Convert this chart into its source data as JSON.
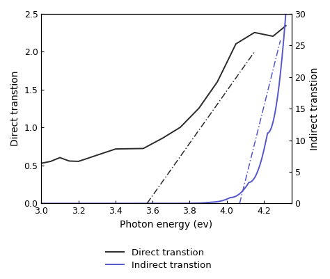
{
  "xlabel": "Photon energy (ev)",
  "ylabel_left": "Direct transtion",
  "ylabel_right": "Indirect transtion",
  "xlim": [
    3.0,
    4.35
  ],
  "ylim_left": [
    0.0,
    2.5
  ],
  "ylim_right": [
    0.0,
    30.0
  ],
  "xticks": [
    3.0,
    3.2,
    3.4,
    3.6,
    3.8,
    4.0,
    4.2
  ],
  "yticks_left": [
    0.0,
    0.5,
    1.0,
    1.5,
    2.0,
    2.5
  ],
  "yticks_right": [
    0,
    5,
    10,
    15,
    20,
    25,
    30
  ],
  "legend_entries": [
    "Direct transtion",
    "Indirect transtion"
  ],
  "direct_color": "#2a2a2a",
  "indirect_color": "#5555cc",
  "figsize": [
    4.74,
    4.01
  ],
  "dpi": 100,
  "scale_factor": 12.0
}
